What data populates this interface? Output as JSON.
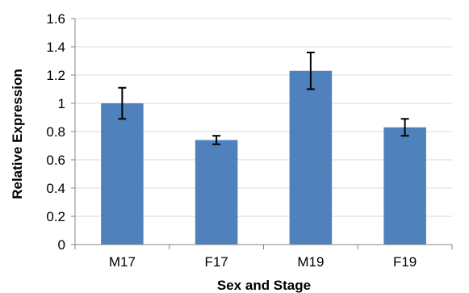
{
  "chart_data": {
    "type": "bar",
    "categories": [
      "M17",
      "F17",
      "M19",
      "F19"
    ],
    "values": [
      1.0,
      0.74,
      1.23,
      0.83
    ],
    "error": [
      0.11,
      0.03,
      0.13,
      0.06
    ],
    "xlabel": "Sex and Stage",
    "ylabel": "Relative Expression",
    "ylim": [
      0,
      1.6
    ],
    "yticks": [
      "0",
      "0.2",
      "0.4",
      "0.6",
      "0.8",
      "1",
      "1.2",
      "1.4",
      "1.6"
    ],
    "grid": true,
    "legend": "none",
    "colors": {
      "bar": "#4f81bd",
      "grid": "#d9d9d9",
      "axis": "#868686",
      "error_bar": "#000000"
    }
  }
}
